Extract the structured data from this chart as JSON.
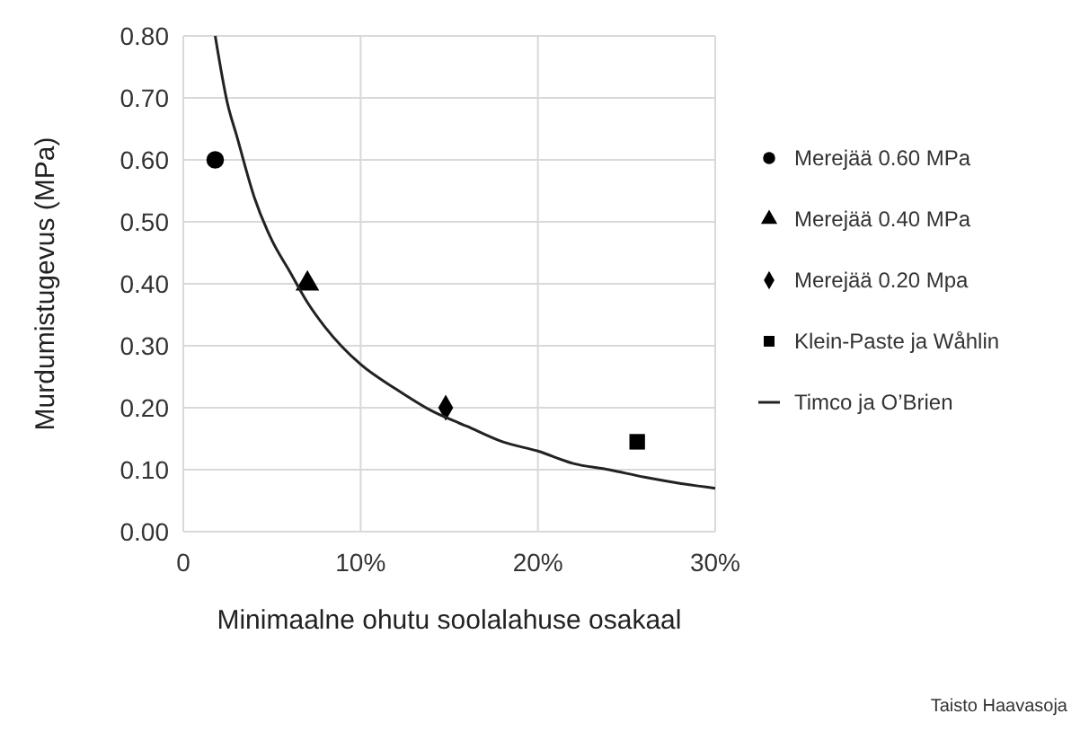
{
  "chart_data": {
    "type": "scatter",
    "xlabel": "Minimaalne ohutu soolalahuse osakaal",
    "ylabel": "Murdumistugevus (MPa)",
    "xlim": [
      0,
      30
    ],
    "xticks": [
      0,
      {
        "value": 10,
        "label": "10%"
      },
      {
        "value": 20,
        "label": "20%"
      },
      {
        "value": 30,
        "label": "30%"
      }
    ],
    "ylim": [
      0,
      0.8
    ],
    "yticks": [
      {
        "value": 0,
        "label": "0.00"
      },
      {
        "value": 0.1,
        "label": "0.10"
      },
      {
        "value": 0.2,
        "label": "0.20"
      },
      {
        "value": 0.3,
        "label": "0.30"
      },
      {
        "value": 0.4,
        "label": "0.40"
      },
      {
        "value": 0.5,
        "label": "0.50"
      },
      {
        "value": 0.6,
        "label": "0.60"
      },
      {
        "value": 0.7,
        "label": "0.70"
      },
      {
        "value": 0.8,
        "label": "0.80"
      }
    ],
    "grid": true,
    "legend": "right",
    "series": [
      {
        "name": "Merejää 0.60 MPa",
        "color": "#000000",
        "marker": "circle",
        "x": [
          1.8
        ],
        "values": [
          0.6
        ]
      },
      {
        "name": "Merejää 0.40 MPa",
        "color": "#000000",
        "marker": "triangle",
        "x": [
          7
        ],
        "values": [
          0.4
        ]
      },
      {
        "name": "Merejää 0.20 Mpa",
        "color": "#000000",
        "marker": "diamond",
        "x": [
          14.8
        ],
        "values": [
          0.2
        ]
      },
      {
        "name": "Klein-Paste ja Wåhlin",
        "color": "#000000",
        "marker": "square",
        "x": [
          25.6
        ],
        "values": [
          0.145
        ]
      },
      {
        "name": "Timco ja O’Brien",
        "type": "line",
        "color": "#222222",
        "marker": "none",
        "x": [
          1.8,
          2.5,
          3,
          4,
          5,
          6,
          7,
          8,
          10,
          12,
          14,
          16,
          18,
          20,
          22,
          24,
          26,
          28,
          30
        ],
        "values": [
          0.8,
          0.69,
          0.64,
          0.54,
          0.47,
          0.42,
          0.37,
          0.33,
          0.27,
          0.23,
          0.195,
          0.17,
          0.145,
          0.13,
          0.11,
          0.1,
          0.088,
          0.078,
          0.07
        ]
      }
    ],
    "annotations": [
      "Taisto Haavasoja"
    ]
  }
}
